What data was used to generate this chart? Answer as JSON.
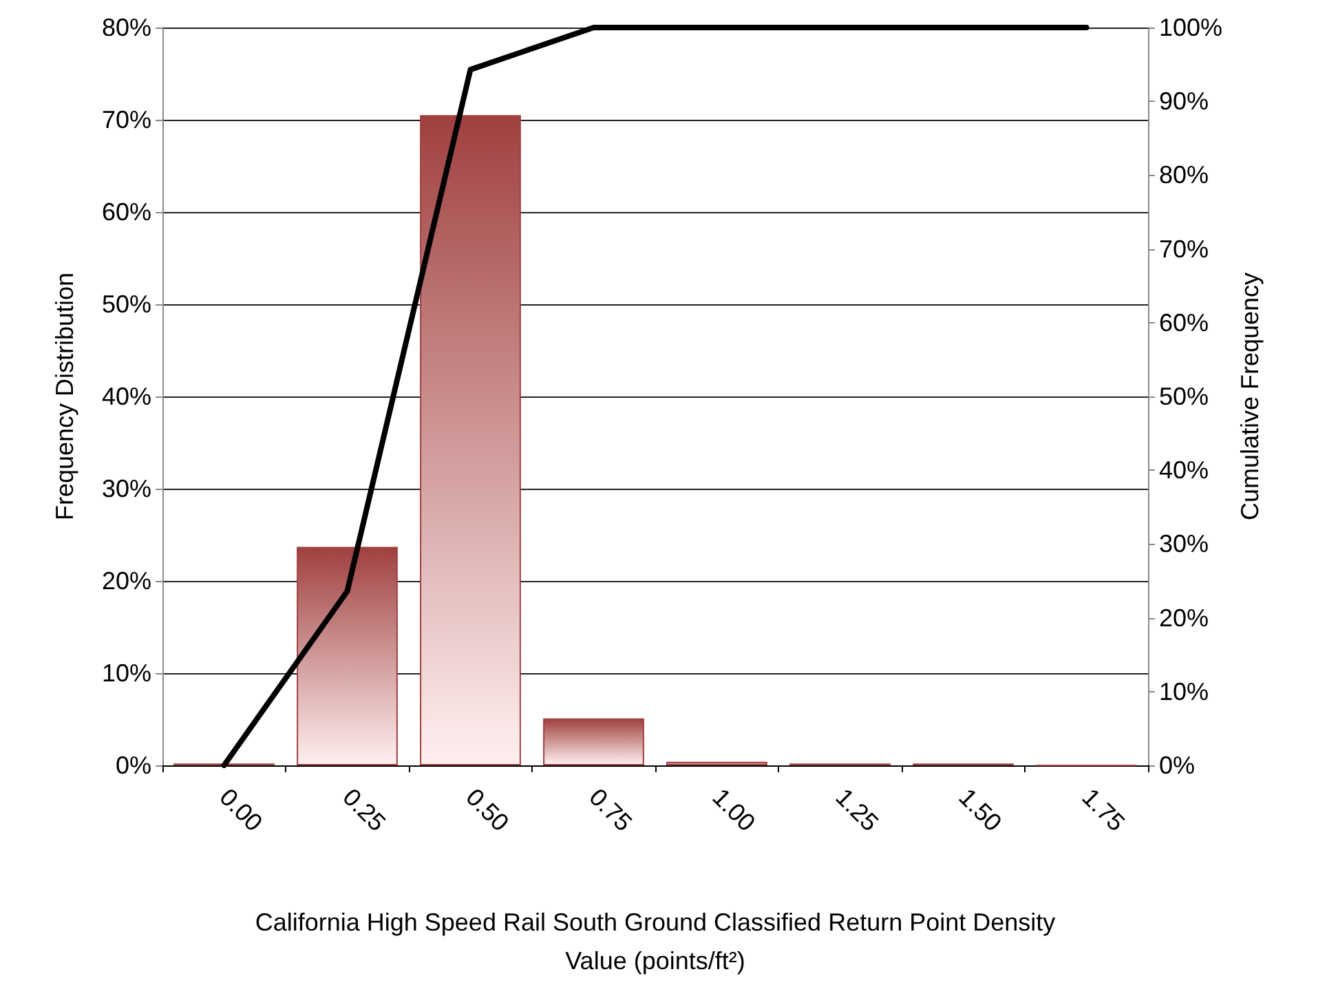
{
  "chart_data": {
    "type": "bar",
    "xlabel": "California High Speed Rail South Ground Classified Return Point Density\nValue (points/ft²)",
    "ylabel": "Frequency Distribution",
    "y2label": "Cumulative Frequency",
    "categories": [
      "0.00",
      "0.25",
      "0.50",
      "0.75",
      "1.00",
      "1.25",
      "1.50",
      "1.75"
    ],
    "series": [
      {
        "color": "#a04040",
        "values": [
          0.2,
          23.7,
          70.5,
          5.1,
          0.4,
          0.2,
          0.2,
          0
        ]
      },
      {
        "type": "line",
        "axis": "y2",
        "color": "#000000",
        "values": [
          0,
          23.6,
          94.3,
          100,
          100,
          100,
          100,
          100
        ]
      }
    ],
    "ylim": [
      0,
      80
    ],
    "yticks": [
      {
        "value": 0,
        "label": "0%"
      },
      {
        "value": 10,
        "label": "10%"
      },
      {
        "value": 20,
        "label": "20%"
      },
      {
        "value": 30,
        "label": "30%"
      },
      {
        "value": 40,
        "label": "40%"
      },
      {
        "value": 50,
        "label": "50%"
      },
      {
        "value": 60,
        "label": "60%"
      },
      {
        "value": 70,
        "label": "70%"
      },
      {
        "value": 80,
        "label": "80%"
      }
    ],
    "y2lim": [
      0,
      100
    ],
    "y2ticks": [
      {
        "value": 0,
        "label": "0%"
      },
      {
        "value": 10,
        "label": "10%"
      },
      {
        "value": 20,
        "label": "20%"
      },
      {
        "value": 30,
        "label": "30%"
      },
      {
        "value": 40,
        "label": "40%"
      },
      {
        "value": 50,
        "label": "50%"
      },
      {
        "value": 60,
        "label": "60%"
      },
      {
        "value": 70,
        "label": "70%"
      },
      {
        "value": 80,
        "label": "80%"
      },
      {
        "value": 90,
        "label": "90%"
      },
      {
        "value": 100,
        "label": "100%"
      }
    ],
    "grid": "y",
    "marker": "none",
    "line_style": "solid"
  }
}
